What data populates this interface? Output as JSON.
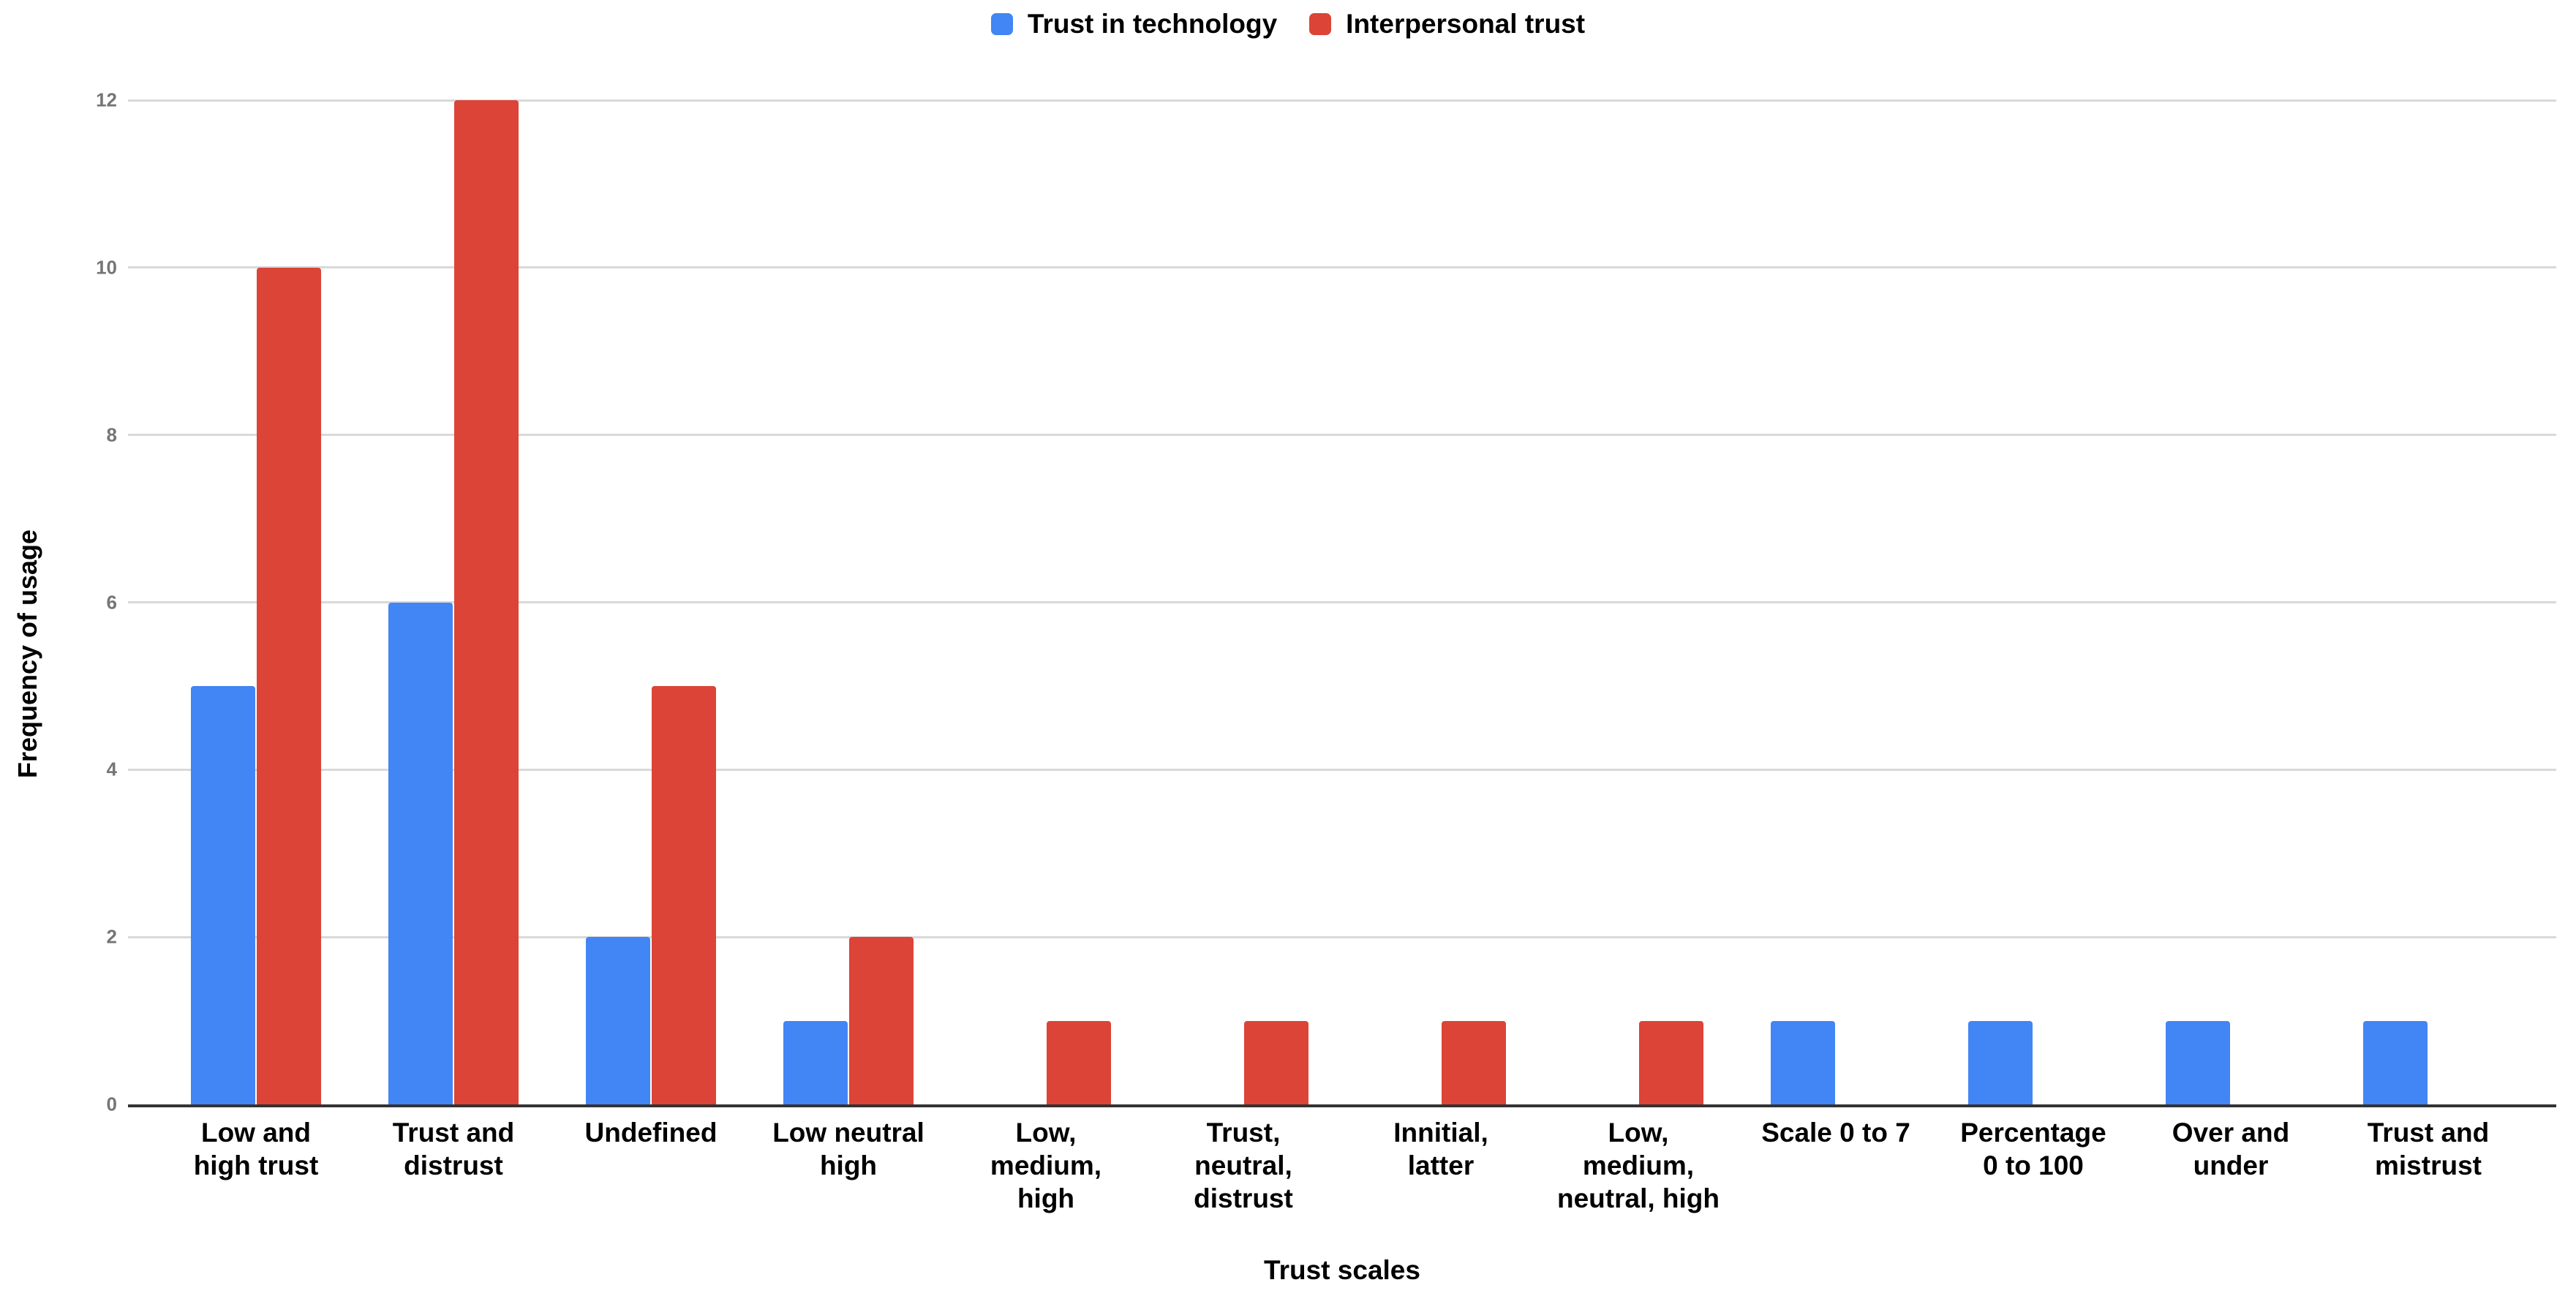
{
  "chart_data": {
    "type": "bar",
    "title": "",
    "xlabel": "Trust scales",
    "ylabel": "Frequency of usage",
    "categories": [
      "Low and high trust",
      "Trust and distrust",
      "Undefined",
      "Low neutral high",
      "Low, medium, high",
      "Trust, neutral, distrust",
      "Innitial, latter",
      "Low, medium, neutral, high",
      "Scale 0 to 7",
      "Percentage 0 to 100",
      "Over and under",
      "Trust and mistrust"
    ],
    "x_labels_display": [
      "Low and\nhigh trust",
      "Trust and\ndistrust",
      "Undefined",
      "Low neutral\nhigh",
      "Low,\nmedium,\nhigh",
      "Trust,\nneutral,\ndistrust",
      "Innitial,\nlatter",
      "Low,\nmedium,\nneutral, high",
      "Scale 0 to 7",
      "Percentage\n0 to 100",
      "Over and\nunder",
      "Trust and\nmistrust"
    ],
    "series": [
      {
        "name": "Trust in technology",
        "color": "#4285F4",
        "values": [
          5,
          6,
          2,
          1,
          0,
          0,
          0,
          0,
          1,
          1,
          1,
          1
        ]
      },
      {
        "name": "Interpersonal trust",
        "color": "#DB4437",
        "values": [
          10,
          12,
          5,
          2,
          1,
          1,
          1,
          1,
          0,
          0,
          0,
          0
        ]
      }
    ],
    "ylim": [
      0,
      12
    ],
    "yticks": [
      0,
      2,
      4,
      6,
      8,
      10,
      12
    ],
    "grid": true,
    "legend_position": "top-center",
    "colors": {
      "gridline": "#d9d9d9",
      "axis_line": "#333333",
      "tick_label": "#757575",
      "text": "#000000",
      "background": "#ffffff"
    }
  }
}
